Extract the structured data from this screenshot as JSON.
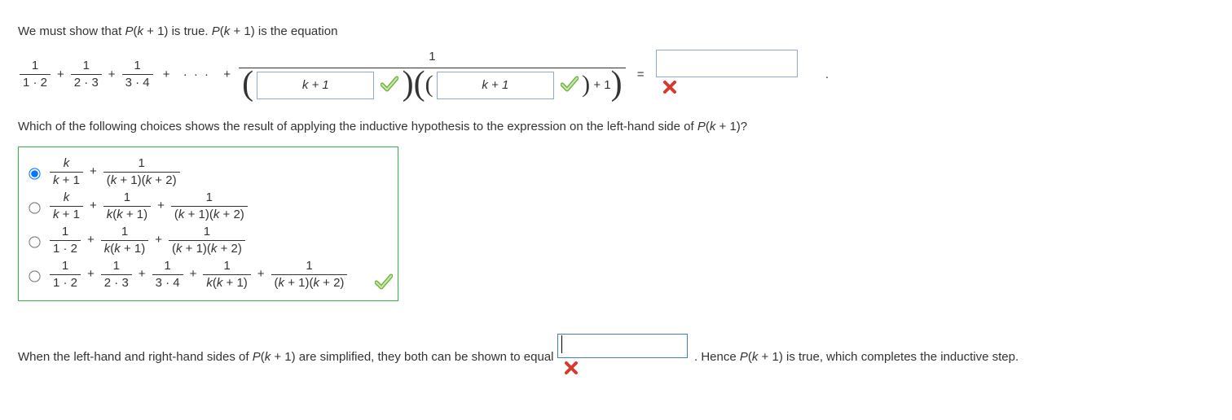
{
  "intro": "We must show that P(k + 1) is true. P(k + 1) is the equation",
  "intro_html": "We must show that <span class='var'>P</span>(<span class='var'>k</span> + 1) is true. <span class='var'>P</span>(<span class='var'>k</span> + 1) is the equation",
  "main_eq": {
    "terms": [
      {
        "num": "1",
        "den": "1 · 2"
      },
      {
        "num": "1",
        "den": "2 · 3"
      },
      {
        "num": "1",
        "den": "3 · 4"
      }
    ],
    "big_num": "1",
    "input1_value": "k + 1",
    "input1_correct": true,
    "input2_value": "k + 1",
    "input2_correct": true,
    "plus_one": "+ 1",
    "equals": "=",
    "rhs_value": "",
    "rhs_correct": false,
    "trailing_dot": "."
  },
  "question": "Which of the following choices shows the result of applying the inductive hypothesis to the expression on the left-hand side of P(k + 1)?",
  "question_html": "Which of the following choices shows the result of applying the inductive hypothesis to the expression on the left-hand side of <span class='var'>P</span>(<span class='var'>k</span> + 1)?",
  "choices": [
    {
      "selected": true,
      "terms": [
        {
          "num": "<span class='var'>k</span>",
          "den": "<span class='var'>k</span> + 1"
        },
        {
          "num": "1",
          "den": "(<span class='var'>k</span> + 1)(<span class='var'>k</span> + 2)"
        }
      ]
    },
    {
      "selected": false,
      "terms": [
        {
          "num": "<span class='var'>k</span>",
          "den": "<span class='var'>k</span> + 1"
        },
        {
          "num": "1",
          "den": "<span class='var'>k</span>(<span class='var'>k</span> + 1)"
        },
        {
          "num": "1",
          "den": "(<span class='var'>k</span> + 1)(<span class='var'>k</span> + 2)"
        }
      ]
    },
    {
      "selected": false,
      "terms": [
        {
          "num": "1",
          "den": "1 · 2"
        },
        {
          "num": "1",
          "den": "<span class='var'>k</span>(<span class='var'>k</span> + 1)"
        },
        {
          "num": "1",
          "den": "(<span class='var'>k</span> + 1)(<span class='var'>k</span> + 2)"
        }
      ]
    },
    {
      "selected": false,
      "terms": [
        {
          "num": "1",
          "den": "1 · 2"
        },
        {
          "num": "1",
          "den": "2 · 3"
        },
        {
          "num": "1",
          "den": "3 · 4"
        },
        {
          "num": "1",
          "den": "<span class='var'>k</span>(<span class='var'>k</span> + 1)"
        },
        {
          "num": "1",
          "den": "(<span class='var'>k</span> + 1)(<span class='var'>k</span> + 2)"
        }
      ]
    }
  ],
  "mc_correct": true,
  "final": {
    "pre": "When the left-hand and right-hand sides of P(k + 1) are simplified, they both can be shown to equal ",
    "pre_html": "When the left-hand and right-hand sides of <span class='var'>P</span>(<span class='var'>k</span> + 1) are simplified, they both can be shown to equal ",
    "value": "",
    "correct": false,
    "post": ". Hence P(k + 1) is true, which completes the inductive step.",
    "post_html": "&nbsp;. Hence <span class='var'>P</span>(<span class='var'>k</span> + 1) is true, which completes the inductive step."
  },
  "colors": {
    "check": "#6db33f",
    "cross": "#d43a2f",
    "box_border": "#8faacc",
    "mc_border": "#4aa65a"
  }
}
